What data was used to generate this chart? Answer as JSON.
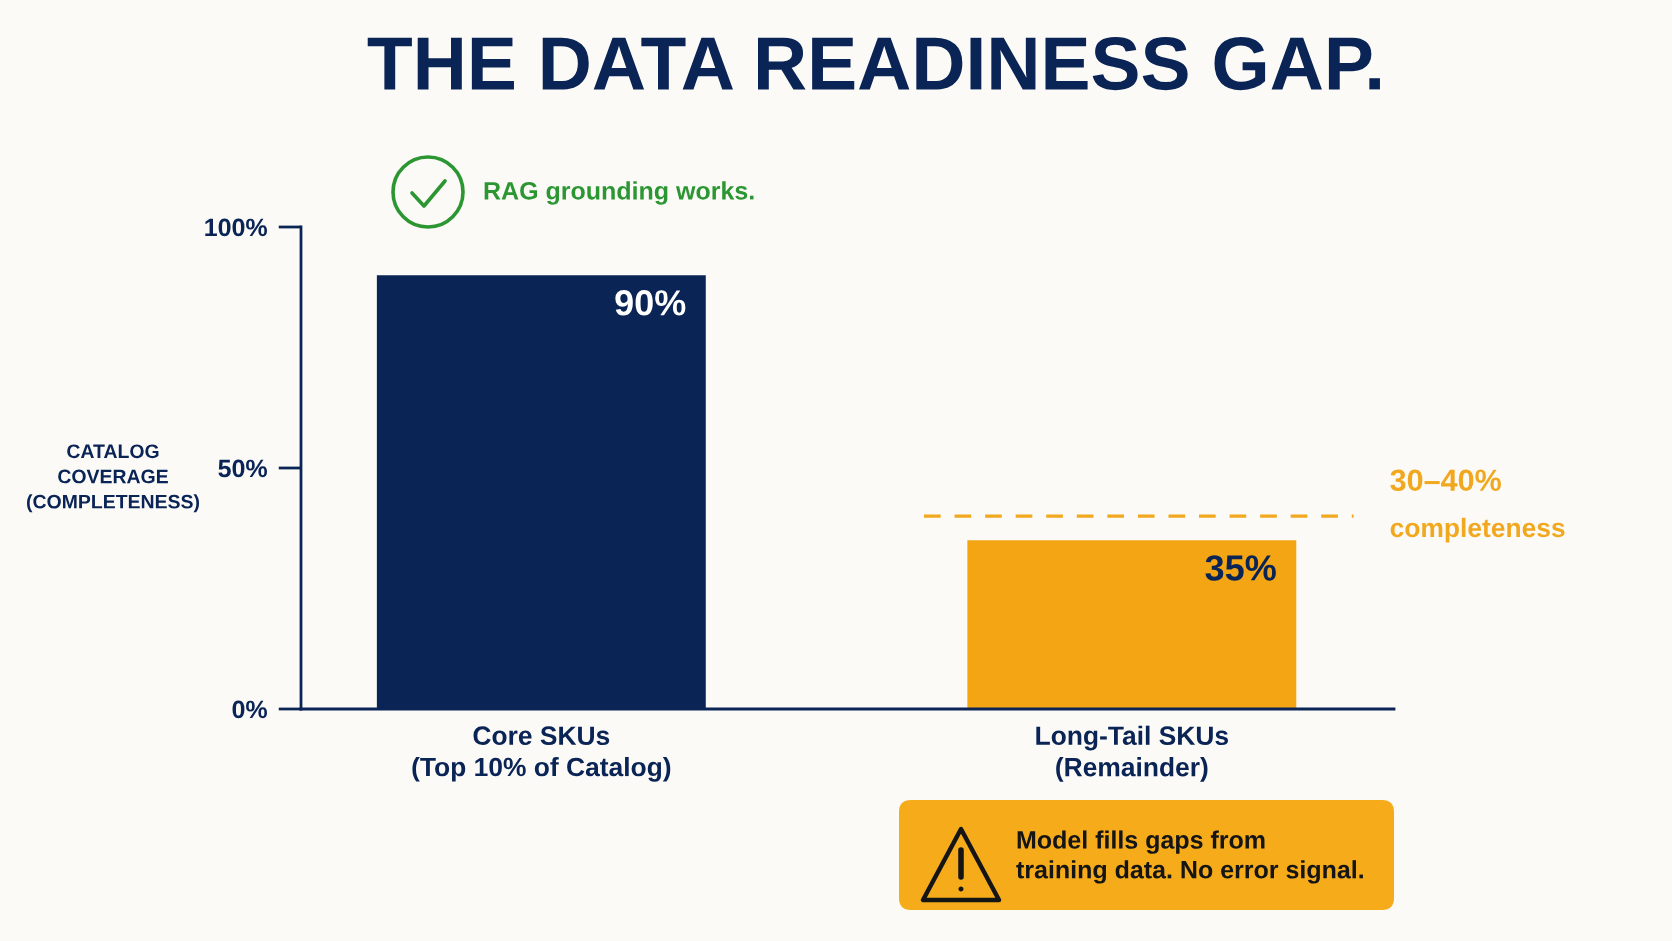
{
  "chart_data": {
    "type": "bar",
    "title": "THE DATA READINESS GAP.",
    "ylabel": "CATALOG\nCOVERAGE\n(COMPLETENESS)",
    "categories": [
      "Core SKUs\n(Top 10% of Catalog)",
      "Long-Tail SKUs\n(Remainder)"
    ],
    "values": [
      90,
      35
    ],
    "colors": [
      "#0a2456",
      "#f3a514"
    ],
    "value_labels": [
      "90%",
      "35%"
    ],
    "ylim": [
      0,
      100
    ],
    "yticks": [
      {
        "value": 0,
        "label": "0%"
      },
      {
        "value": 50,
        "label": "50%"
      },
      {
        "value": 100,
        "label": "100%"
      }
    ],
    "ref_lines": [
      {
        "axis": "y",
        "value": 40,
        "label": "30–40%\ncompleteness",
        "color": "#f2a81e",
        "line_style": "dashed"
      }
    ],
    "annotations": [
      "RAG grounding works.",
      "Model fills gaps from\ntraining data. No error signal."
    ]
  }
}
